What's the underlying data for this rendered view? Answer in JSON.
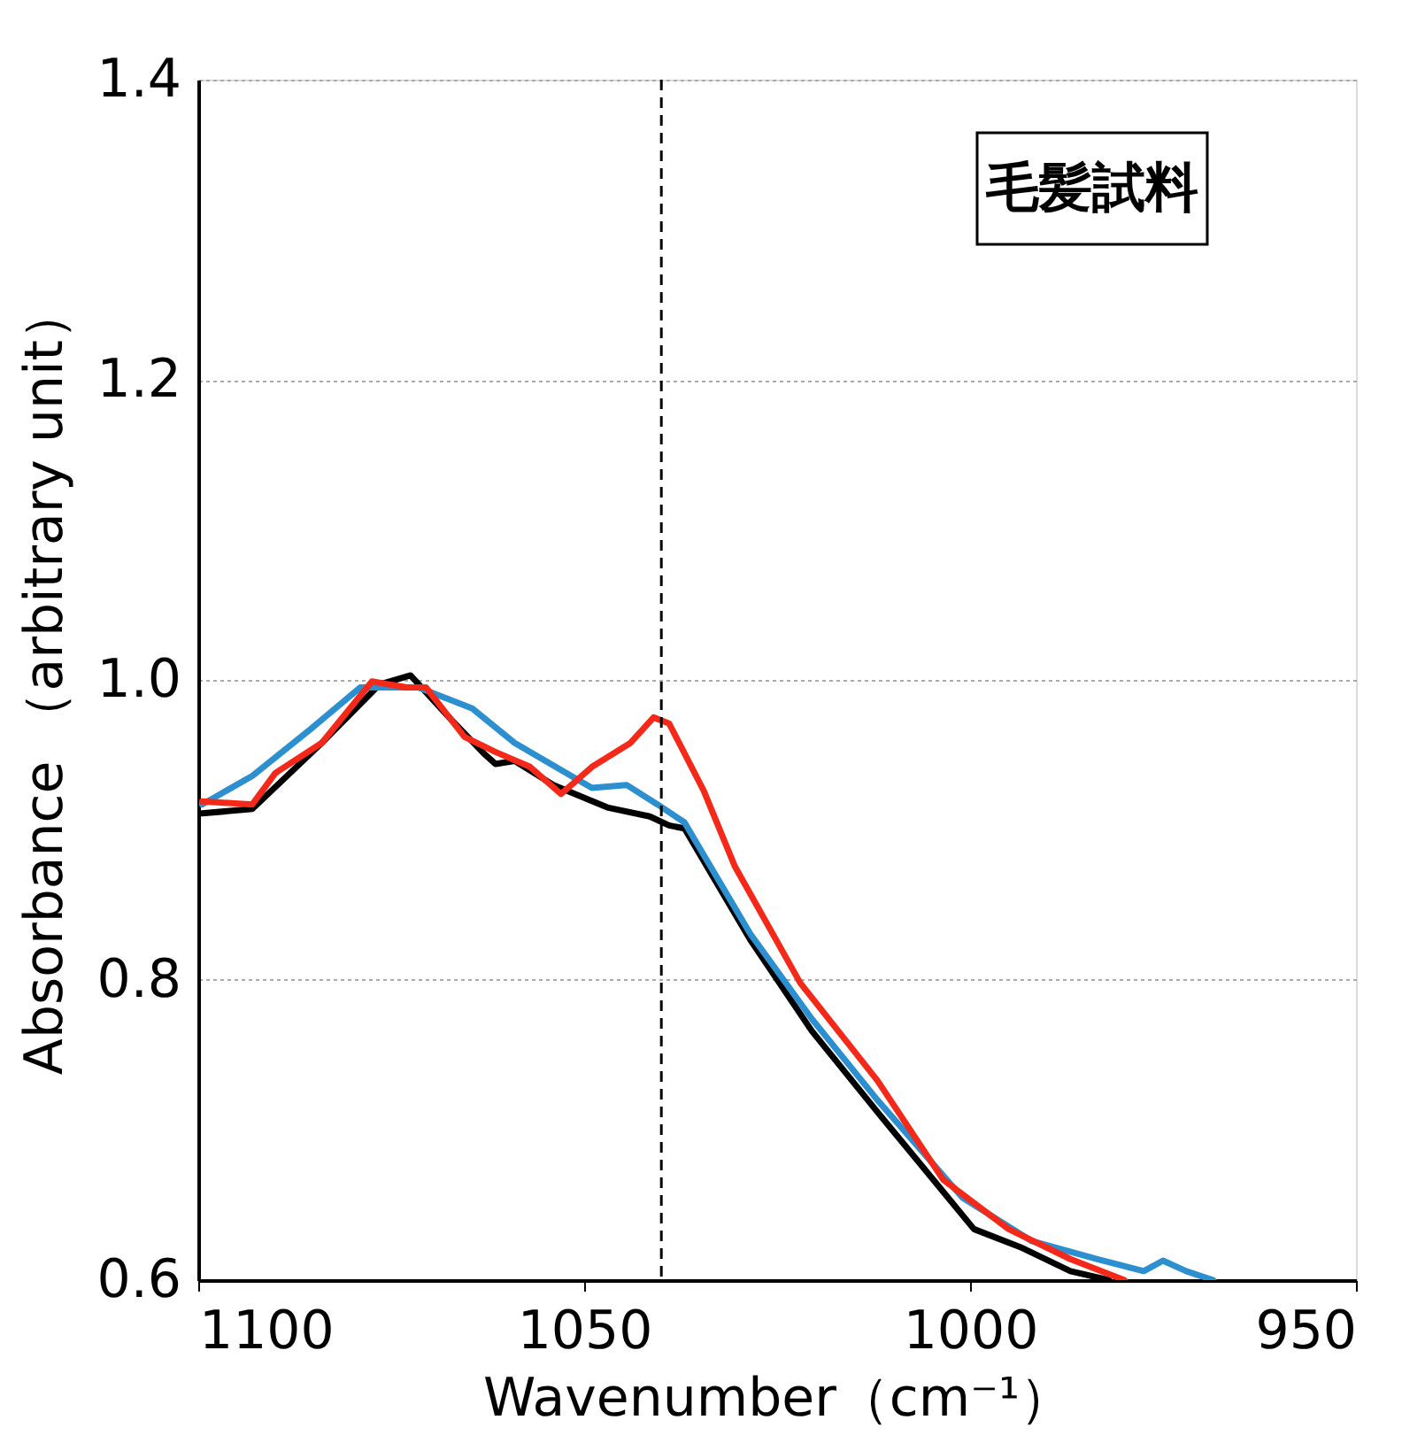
{
  "chart_data": {
    "type": "line",
    "xlabel": "Wavenumber（cm⁻¹）",
    "ylabel": "Absorbance （arbitrary unit）",
    "annotations": [
      "毛髪試料"
    ],
    "xlim": [
      1100,
      950
    ],
    "xticks": [
      1100,
      1050,
      1000,
      950
    ],
    "ylim": [
      0.6,
      1.4
    ],
    "yticks": [
      {
        "value": 0.6,
        "label": "0.6"
      },
      {
        "value": 0.8,
        "label": "0.8"
      },
      {
        "value": 1.0,
        "label": "1.0"
      },
      {
        "value": 1.2,
        "label": "1.2"
      },
      {
        "value": 1.4,
        "label": "1.4"
      }
    ],
    "grid": "y",
    "legend": false,
    "marker": "none",
    "line_style": "solid",
    "ref_lines": [
      {
        "axis": "x",
        "value": 1040,
        "color": "#000000",
        "line_style": "dashed"
      }
    ],
    "series": [
      {
        "color": "#000000",
        "x": [
          1099.5,
          1093,
          1084,
          1076.5,
          1072.5,
          1067.5,
          1063,
          1061.5,
          1059,
          1054,
          1047,
          1041.5,
          1039,
          1037,
          1028.5,
          1020.5,
          1012,
          1003.5,
          999.5,
          993.5,
          987,
          982
        ],
        "values": [
          0.911,
          0.914,
          0.958,
          0.997,
          1.003,
          0.975,
          0.951,
          0.944,
          0.946,
          0.93,
          0.915,
          0.909,
          0.903,
          0.901,
          0.827,
          0.766,
          0.712,
          0.659,
          0.634,
          0.622,
          0.606,
          0.6
        ]
      },
      {
        "color": "#2b8fd0",
        "x": [
          1099.5,
          1093,
          1085.5,
          1079,
          1071.5,
          1064.5,
          1059,
          1053,
          1049,
          1044.5,
          1040.5,
          1037,
          1028.5,
          1020.5,
          1012,
          1001,
          992,
          983.5,
          977.5,
          975,
          972,
          968.5
        ],
        "values": [
          0.917,
          0.936,
          0.967,
          0.995,
          0.995,
          0.981,
          0.958,
          0.94,
          0.928,
          0.93,
          0.917,
          0.905,
          0.831,
          0.774,
          0.72,
          0.655,
          0.626,
          0.614,
          0.606,
          0.613,
          0.606,
          0.6
        ]
      },
      {
        "color": "#f5291a",
        "x": [
          1099.5,
          1093,
          1090,
          1084,
          1077.5,
          1073,
          1070.5,
          1065.5,
          1061.5,
          1057,
          1053,
          1049,
          1044,
          1041,
          1039,
          1034.5,
          1030.5,
          1022,
          1012,
          1003.5,
          995,
          987,
          980
        ],
        "values": [
          0.919,
          0.917,
          0.938,
          0.958,
          0.999,
          0.995,
          0.995,
          0.962,
          0.952,
          0.942,
          0.924,
          0.942,
          0.958,
          0.975,
          0.971,
          0.926,
          0.876,
          0.798,
          0.733,
          0.667,
          0.634,
          0.614,
          0.6
        ]
      }
    ]
  }
}
